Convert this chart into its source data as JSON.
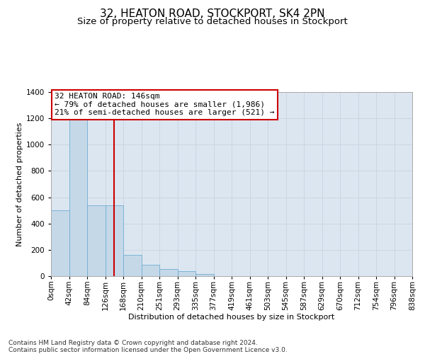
{
  "title_line1": "32, HEATON ROAD, STOCKPORT, SK4 2PN",
  "title_line2": "Size of property relative to detached houses in Stockport",
  "xlabel": "Distribution of detached houses by size in Stockport",
  "ylabel": "Number of detached properties",
  "bin_labels": [
    "0sqm",
    "42sqm",
    "84sqm",
    "126sqm",
    "168sqm",
    "210sqm",
    "251sqm",
    "293sqm",
    "335sqm",
    "377sqm",
    "419sqm",
    "461sqm",
    "503sqm",
    "545sqm",
    "587sqm",
    "629sqm",
    "670sqm",
    "712sqm",
    "754sqm",
    "796sqm",
    "838sqm"
  ],
  "bar_values": [
    500,
    1260,
    540,
    540,
    160,
    85,
    55,
    40,
    15,
    0,
    0,
    0,
    0,
    0,
    0,
    0,
    0,
    0,
    0,
    0
  ],
  "bar_color": "#c5d8e8",
  "bar_edge_color": "#6faed4",
  "vline_bin": 3.5,
  "annotation_text": "32 HEATON ROAD: 146sqm\n← 79% of detached houses are smaller (1,986)\n21% of semi-detached houses are larger (521) →",
  "annotation_box_color": "#ffffff",
  "annotation_box_edge": "#cc0000",
  "vline_color": "#cc0000",
  "ylim": [
    0,
    1400
  ],
  "yticks": [
    0,
    200,
    400,
    600,
    800,
    1000,
    1200,
    1400
  ],
  "grid_color": "#c8d4e0",
  "background_color": "#dce6f0",
  "footer_text": "Contains HM Land Registry data © Crown copyright and database right 2024.\nContains public sector information licensed under the Open Government Licence v3.0.",
  "title_fontsize": 11,
  "subtitle_fontsize": 9.5,
  "axis_label_fontsize": 8,
  "tick_fontsize": 7.5,
  "annotation_fontsize": 8,
  "footer_fontsize": 6.5
}
